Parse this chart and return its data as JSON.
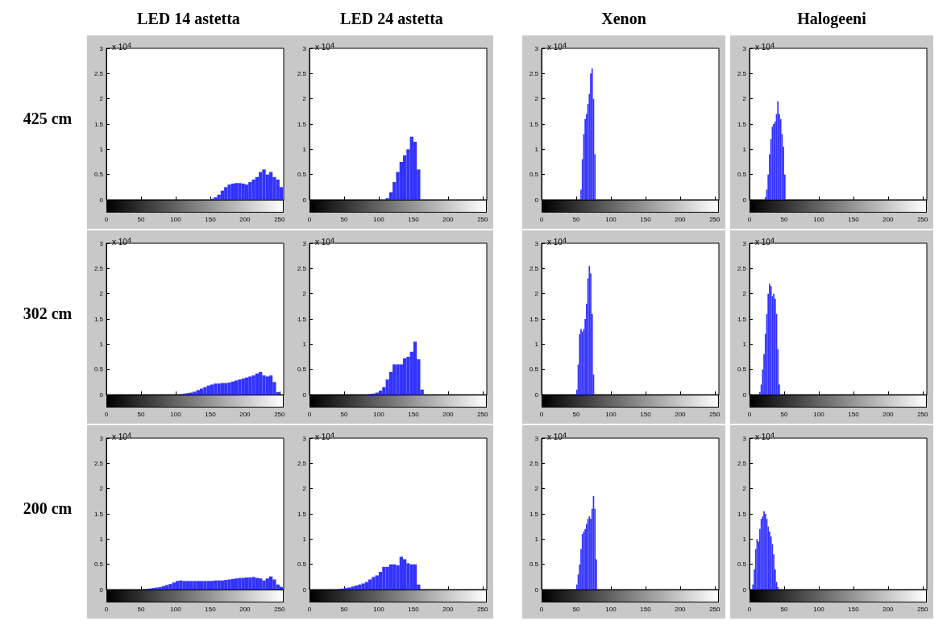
{
  "chart_data": [
    {
      "type": "histogram",
      "title": "LED 14 astetta",
      "ylabel": "425 cm",
      "annotations": [
        "x 10$^{4}$"
      ],
      "color": "#3333ff",
      "xlim": [
        0,
        256
      ],
      "xticks": [
        0,
        50,
        100,
        150,
        200,
        250
      ],
      "ylim": [
        0,
        3
      ],
      "yticks": [
        0,
        0.5,
        1,
        1.5,
        2,
        2.5,
        3
      ],
      "bins": [
        150,
        155,
        160,
        165,
        170,
        175,
        180,
        185,
        190,
        195,
        200,
        205,
        210,
        215,
        220,
        225,
        230,
        235,
        240,
        245,
        250,
        255
      ],
      "values": [
        0.02,
        0.05,
        0.1,
        0.18,
        0.25,
        0.3,
        0.32,
        0.33,
        0.33,
        0.32,
        0.3,
        0.35,
        0.4,
        0.45,
        0.55,
        0.6,
        0.5,
        0.55,
        0.45,
        0.4,
        0.25
      ]
    },
    {
      "type": "histogram",
      "title": "LED 24 astetta",
      "annotations": [
        "x 10$^{4}$"
      ],
      "color": "#3333ff",
      "xlim": [
        0,
        256
      ],
      "xticks": [
        0,
        50,
        100,
        150,
        200,
        250
      ],
      "ylim": [
        0,
        3
      ],
      "yticks": [
        0,
        0.5,
        1,
        1.5,
        2,
        2.5,
        3
      ],
      "bins": [
        110,
        115,
        120,
        125,
        130,
        135,
        140,
        145,
        150,
        155,
        160
      ],
      "values": [
        0.03,
        0.15,
        0.35,
        0.55,
        0.75,
        0.88,
        1.0,
        1.25,
        1.15,
        0.6
      ]
    },
    {
      "type": "histogram",
      "title": "Xenon",
      "annotations": [
        "x 10$^{4}$"
      ],
      "color": "#3333ff",
      "xlim": [
        0,
        256
      ],
      "xticks": [
        0,
        50,
        100,
        150,
        200,
        250
      ],
      "ylim": [
        0,
        3
      ],
      "yticks": [
        0,
        0.5,
        1,
        1.5,
        2,
        2.5,
        3
      ],
      "bins": [
        56,
        58,
        60,
        62,
        64,
        66,
        68,
        70,
        72,
        74,
        76,
        78
      ],
      "values": [
        0.2,
        0.8,
        1.3,
        1.6,
        1.7,
        1.9,
        2.1,
        2.5,
        2.6,
        2.0,
        0.9
      ]
    },
    {
      "type": "histogram",
      "title": "Halogeeni",
      "annotations": [
        "x 10$^{4}$"
      ],
      "color": "#3333ff",
      "xlim": [
        0,
        256
      ],
      "xticks": [
        0,
        50,
        100,
        150,
        200,
        250
      ],
      "ylim": [
        0,
        3
      ],
      "yticks": [
        0,
        0.5,
        1,
        1.5,
        2,
        2.5,
        3
      ],
      "bins": [
        22,
        24,
        26,
        28,
        30,
        32,
        34,
        36,
        38,
        40,
        42,
        44,
        46,
        48,
        50,
        52
      ],
      "values": [
        0.05,
        0.2,
        0.5,
        0.9,
        1.2,
        1.45,
        1.5,
        1.55,
        1.7,
        1.95,
        1.7,
        1.6,
        1.3,
        1.05,
        0.5
      ]
    },
    {
      "type": "histogram",
      "ylabel": "302 cm",
      "annotations": [
        "x 10$^{4}$"
      ],
      "color": "#3333ff",
      "xlim": [
        0,
        256
      ],
      "xticks": [
        0,
        50,
        100,
        150,
        200,
        250
      ],
      "ylim": [
        0,
        3
      ],
      "yticks": [
        0,
        0.5,
        1,
        1.5,
        2,
        2.5,
        3
      ],
      "bins": [
        105,
        110,
        115,
        120,
        125,
        130,
        135,
        140,
        145,
        150,
        155,
        160,
        165,
        170,
        175,
        180,
        185,
        190,
        195,
        200,
        205,
        210,
        215,
        220,
        225,
        230,
        235,
        240,
        245,
        250
      ],
      "values": [
        0.01,
        0.02,
        0.03,
        0.04,
        0.06,
        0.09,
        0.12,
        0.15,
        0.18,
        0.2,
        0.22,
        0.22,
        0.23,
        0.23,
        0.24,
        0.26,
        0.28,
        0.3,
        0.32,
        0.34,
        0.36,
        0.38,
        0.42,
        0.45,
        0.38,
        0.36,
        0.38,
        0.25,
        0.05
      ]
    },
    {
      "type": "histogram",
      "annotations": [
        "x 10$^{4}$"
      ],
      "color": "#3333ff",
      "xlim": [
        0,
        256
      ],
      "xticks": [
        0,
        50,
        100,
        150,
        200,
        250
      ],
      "ylim": [
        0,
        3
      ],
      "yticks": [
        0,
        0.5,
        1,
        1.5,
        2,
        2.5,
        3
      ],
      "bins": [
        85,
        90,
        95,
        100,
        105,
        110,
        115,
        120,
        125,
        130,
        135,
        140,
        145,
        150,
        155,
        160,
        165
      ],
      "values": [
        0.01,
        0.02,
        0.04,
        0.08,
        0.15,
        0.3,
        0.45,
        0.6,
        0.6,
        0.6,
        0.72,
        0.75,
        0.85,
        1.05,
        0.7,
        0.1
      ]
    },
    {
      "type": "histogram",
      "annotations": [
        "x 10$^{4}$"
      ],
      "color": "#3333ff",
      "xlim": [
        0,
        256
      ],
      "xticks": [
        0,
        50,
        100,
        150,
        200,
        250
      ],
      "ylim": [
        0,
        3
      ],
      "yticks": [
        0,
        0.5,
        1,
        1.5,
        2,
        2.5,
        3
      ],
      "bins": [
        50,
        52,
        54,
        56,
        58,
        60,
        62,
        64,
        66,
        68,
        70,
        72,
        74,
        76
      ],
      "values": [
        0.1,
        0.6,
        1.2,
        1.3,
        1.25,
        1.3,
        1.5,
        1.8,
        2.3,
        2.55,
        2.4,
        1.6,
        0.4
      ]
    },
    {
      "type": "histogram",
      "annotations": [
        "x 10$^{4}$"
      ],
      "color": "#3333ff",
      "xlim": [
        0,
        256
      ],
      "xticks": [
        0,
        50,
        100,
        150,
        200,
        250
      ],
      "ylim": [
        0,
        3
      ],
      "yticks": [
        0,
        0.5,
        1,
        1.5,
        2,
        2.5,
        3
      ],
      "bins": [
        14,
        16,
        18,
        20,
        22,
        24,
        26,
        28,
        30,
        32,
        34,
        36,
        38,
        40,
        42,
        44
      ],
      "values": [
        0.05,
        0.2,
        0.5,
        0.8,
        1.2,
        1.6,
        2.0,
        2.2,
        2.15,
        1.95,
        2.0,
        1.9,
        1.6,
        0.9,
        0.2
      ]
    },
    {
      "type": "histogram",
      "ylabel": "200 cm",
      "annotations": [
        "x 10$^{4}$"
      ],
      "color": "#3333ff",
      "xlim": [
        0,
        256
      ],
      "xticks": [
        0,
        50,
        100,
        150,
        200,
        250
      ],
      "ylim": [
        0,
        3
      ],
      "yticks": [
        0,
        0.5,
        1,
        1.5,
        2,
        2.5,
        3
      ],
      "bins": [
        55,
        60,
        65,
        70,
        75,
        80,
        85,
        90,
        95,
        100,
        105,
        110,
        115,
        120,
        125,
        130,
        135,
        140,
        145,
        150,
        155,
        160,
        165,
        170,
        175,
        180,
        185,
        190,
        195,
        200,
        205,
        210,
        215,
        220,
        225,
        230,
        235,
        240,
        245,
        250,
        255
      ],
      "values": [
        0.01,
        0.02,
        0.03,
        0.04,
        0.05,
        0.07,
        0.09,
        0.11,
        0.14,
        0.17,
        0.18,
        0.17,
        0.17,
        0.17,
        0.17,
        0.17,
        0.17,
        0.17,
        0.17,
        0.17,
        0.18,
        0.18,
        0.18,
        0.19,
        0.2,
        0.21,
        0.22,
        0.23,
        0.23,
        0.24,
        0.24,
        0.25,
        0.23,
        0.22,
        0.18,
        0.22,
        0.26,
        0.2,
        0.1,
        0.05
      ]
    },
    {
      "type": "histogram",
      "annotations": [
        "x 10$^{4}$"
      ],
      "color": "#3333ff",
      "xlim": [
        0,
        256
      ],
      "xticks": [
        0,
        50,
        100,
        150,
        200,
        250
      ],
      "ylim": [
        0,
        3
      ],
      "yticks": [
        0,
        0.5,
        1,
        1.5,
        2,
        2.5,
        3
      ],
      "bins": [
        40,
        45,
        50,
        55,
        60,
        65,
        70,
        75,
        80,
        85,
        90,
        95,
        100,
        105,
        110,
        115,
        120,
        125,
        130,
        135,
        140,
        145,
        150,
        155,
        160
      ],
      "values": [
        0.01,
        0.02,
        0.03,
        0.04,
        0.06,
        0.08,
        0.1,
        0.12,
        0.15,
        0.2,
        0.25,
        0.28,
        0.35,
        0.45,
        0.45,
        0.5,
        0.5,
        0.48,
        0.65,
        0.6,
        0.52,
        0.5,
        0.5,
        0.1
      ]
    },
    {
      "type": "histogram",
      "annotations": [
        "x 10$^{4}$"
      ],
      "color": "#3333ff",
      "xlim": [
        0,
        256
      ],
      "xticks": [
        0,
        50,
        100,
        150,
        200,
        250
      ],
      "ylim": [
        0,
        3
      ],
      "yticks": [
        0,
        0.5,
        1,
        1.5,
        2,
        2.5,
        3
      ],
      "bins": [
        50,
        52,
        54,
        56,
        58,
        60,
        62,
        64,
        66,
        68,
        70,
        72,
        74,
        76,
        78,
        80
      ],
      "values": [
        0.1,
        0.3,
        0.5,
        0.8,
        1.1,
        1.15,
        1.2,
        1.3,
        1.4,
        1.45,
        1.4,
        1.6,
        1.85,
        1.6,
        0.6
      ]
    },
    {
      "type": "histogram",
      "annotations": [
        "x 10$^{4}$"
      ],
      "color": "#3333ff",
      "xlim": [
        0,
        256
      ],
      "xticks": [
        0,
        50,
        100,
        150,
        200,
        250
      ],
      "ylim": [
        0,
        3
      ],
      "yticks": [
        0,
        0.5,
        1,
        1.5,
        2,
        2.5,
        3
      ],
      "bins": [
        4,
        6,
        8,
        10,
        12,
        14,
        16,
        18,
        20,
        22,
        24,
        26,
        28,
        30,
        32,
        34,
        36,
        38,
        40,
        42
      ],
      "values": [
        0.1,
        0.4,
        0.8,
        1.0,
        0.95,
        1.2,
        1.4,
        1.45,
        1.55,
        1.5,
        1.4,
        1.25,
        1.15,
        1.05,
        0.9,
        0.7,
        0.4,
        0.15,
        0.05
      ]
    }
  ]
}
